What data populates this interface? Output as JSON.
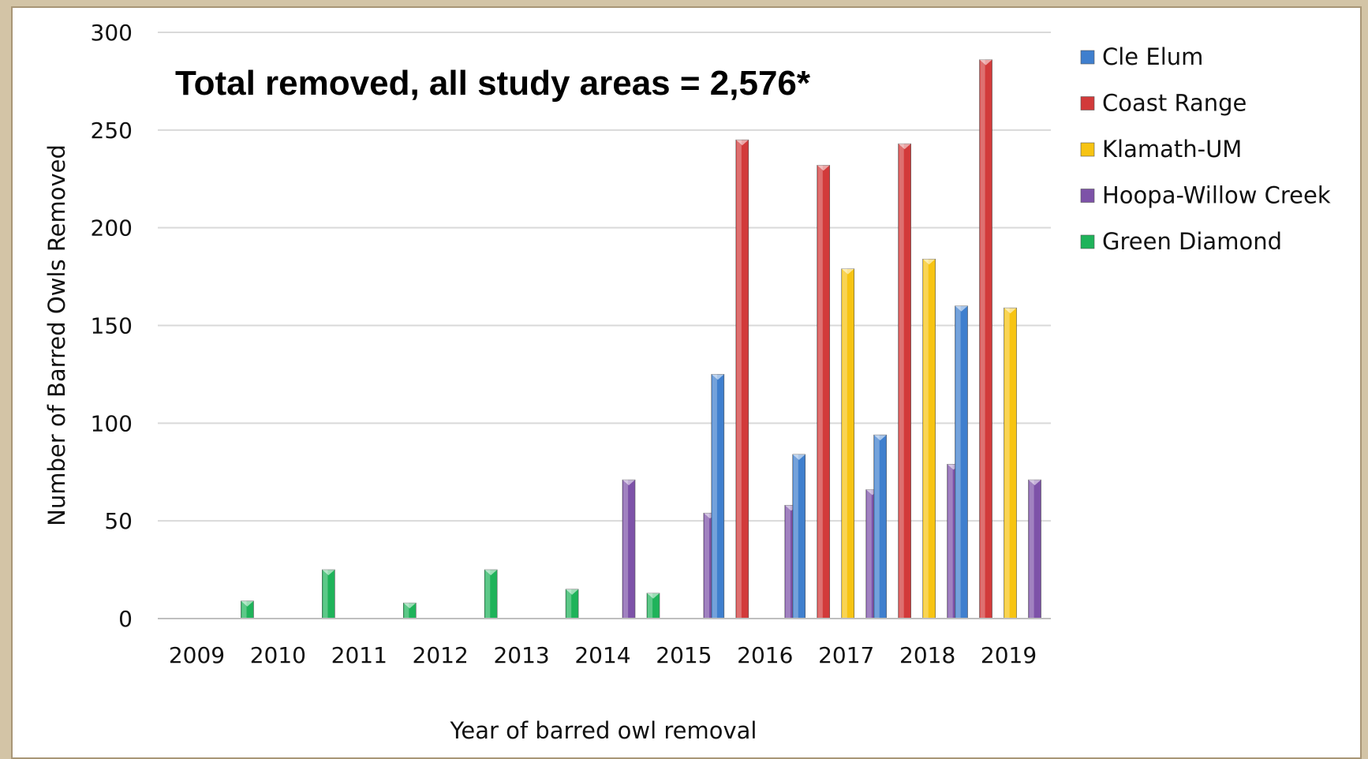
{
  "chart_data": {
    "type": "bar",
    "title": "",
    "annotation": "Total removed, all study areas = 2,576*",
    "xlabel": "Year of barred owl removal",
    "ylabel": "Number of Barred Owls Removed",
    "ylim": [
      0,
      300
    ],
    "yticks": [
      0,
      50,
      100,
      150,
      200,
      250,
      300
    ],
    "grid": true,
    "legend_position": "right",
    "categories": [
      "2009",
      "2010",
      "2011",
      "2012",
      "2013",
      "2014",
      "2015",
      "2016",
      "2017",
      "2018",
      "2019"
    ],
    "series": [
      {
        "name": "Cle Elum",
        "color": "#3f7fce",
        "values": [
          0,
          0,
          0,
          0,
          0,
          0,
          0,
          125,
          84,
          94,
          160
        ]
      },
      {
        "name": "Coast Range",
        "color": "#d23a3a",
        "values": [
          0,
          0,
          0,
          0,
          0,
          0,
          0,
          245,
          232,
          243,
          286
        ]
      },
      {
        "name": "Klamath-UM",
        "color": "#f7c412",
        "values": [
          0,
          0,
          0,
          0,
          0,
          0,
          0,
          0,
          179,
          184,
          159
        ]
      },
      {
        "name": "Hoopa-Willow Creek",
        "color": "#7d52a8",
        "values": [
          0,
          0,
          0,
          0,
          0,
          71,
          54,
          58,
          66,
          79,
          71
        ]
      },
      {
        "name": "Green Diamond",
        "color": "#1fb35a",
        "values": [
          9,
          25,
          8,
          25,
          15,
          13,
          0,
          0,
          0,
          0,
          0
        ]
      }
    ]
  }
}
